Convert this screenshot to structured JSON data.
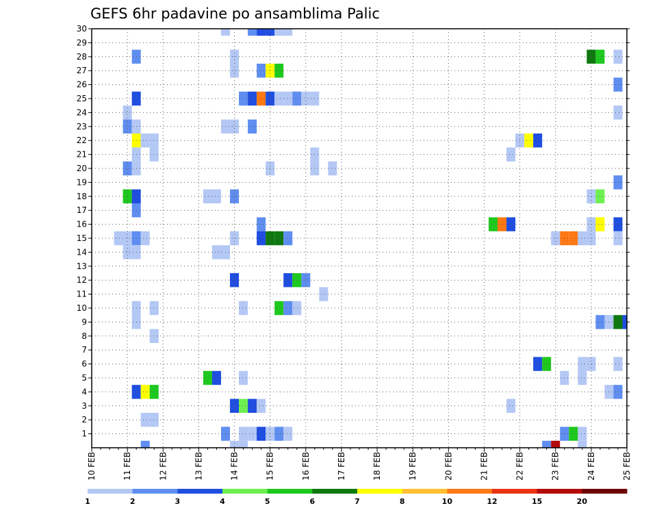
{
  "chart_data": {
    "type": "heatmap",
    "title": "GEFS 6hr padavine po ansamblima Palic",
    "xlabel": "",
    "ylabel": "",
    "x_ticks": [
      "10 FEB",
      "11 FEB",
      "12 FEB",
      "13 FEB",
      "14 FEB",
      "15 FEB",
      "16 FEB",
      "17 FEB",
      "18 FEB",
      "19 FEB",
      "20 FEB",
      "21 FEB",
      "22 FEB",
      "23 FEB",
      "24 FEB",
      "25 FEB"
    ],
    "y_ticks": [
      1,
      2,
      3,
      4,
      5,
      6,
      7,
      8,
      9,
      10,
      11,
      12,
      13,
      14,
      15,
      16,
      17,
      18,
      19,
      20,
      21,
      22,
      23,
      24,
      25,
      26,
      27,
      28,
      29,
      30
    ],
    "x_range": [
      0,
      60
    ],
    "y_range": [
      0,
      30
    ],
    "grid": true,
    "levels": [
      1,
      2,
      3,
      4,
      5,
      6,
      7,
      8,
      10,
      12,
      15,
      20
    ],
    "level_colors": [
      "#b4c8f5",
      "#5f8ef0",
      "#1f4ee0",
      "#6ef050",
      "#1ec81e",
      "#0f780f",
      "#ffff00",
      "#ffc032",
      "#ff7814",
      "#eb3214",
      "#b40a0a",
      "#6e0505"
    ],
    "cells": [
      [
        15,
        30,
        1
      ],
      [
        18,
        30,
        2
      ],
      [
        19,
        30,
        3
      ],
      [
        20,
        30,
        3
      ],
      [
        21,
        30,
        1
      ],
      [
        22,
        30,
        1
      ],
      [
        5,
        28,
        2
      ],
      [
        16,
        28,
        1
      ],
      [
        56,
        28,
        6
      ],
      [
        57,
        28,
        5
      ],
      [
        59,
        28,
        1
      ],
      [
        16,
        27,
        1
      ],
      [
        19,
        27,
        2
      ],
      [
        20,
        27,
        7
      ],
      [
        21,
        27,
        5
      ],
      [
        59,
        26,
        2
      ],
      [
        5,
        25,
        3
      ],
      [
        17,
        25,
        2
      ],
      [
        18,
        25,
        3
      ],
      [
        19,
        25,
        9
      ],
      [
        20,
        25,
        3
      ],
      [
        21,
        25,
        1
      ],
      [
        22,
        25,
        1
      ],
      [
        23,
        25,
        2
      ],
      [
        24,
        25,
        1
      ],
      [
        25,
        25,
        1
      ],
      [
        4,
        24,
        1
      ],
      [
        59,
        24,
        1
      ],
      [
        4,
        23,
        2
      ],
      [
        5,
        23,
        1
      ],
      [
        15,
        23,
        1
      ],
      [
        16,
        23,
        1
      ],
      [
        18,
        23,
        2
      ],
      [
        5,
        22,
        7
      ],
      [
        6,
        22,
        1
      ],
      [
        7,
        22,
        1
      ],
      [
        48,
        22,
        1
      ],
      [
        49,
        22,
        7
      ],
      [
        50,
        22,
        3
      ],
      [
        5,
        21,
        1
      ],
      [
        7,
        21,
        1
      ],
      [
        25,
        21,
        1
      ],
      [
        47,
        21,
        1
      ],
      [
        4,
        20,
        2
      ],
      [
        5,
        20,
        1
      ],
      [
        20,
        20,
        1
      ],
      [
        25,
        20,
        1
      ],
      [
        27,
        20,
        1
      ],
      [
        59,
        19,
        2
      ],
      [
        4,
        18,
        5
      ],
      [
        5,
        18,
        3
      ],
      [
        13,
        18,
        1
      ],
      [
        14,
        18,
        1
      ],
      [
        16,
        18,
        2
      ],
      [
        56,
        18,
        1
      ],
      [
        57,
        18,
        4
      ],
      [
        5,
        17,
        2
      ],
      [
        19,
        16,
        2
      ],
      [
        45,
        16,
        5
      ],
      [
        46,
        16,
        9
      ],
      [
        47,
        16,
        3
      ],
      [
        56,
        16,
        1
      ],
      [
        57,
        16,
        7
      ],
      [
        59,
        16,
        3
      ],
      [
        3,
        15,
        1
      ],
      [
        4,
        15,
        1
      ],
      [
        5,
        15,
        2
      ],
      [
        6,
        15,
        1
      ],
      [
        16,
        15,
        1
      ],
      [
        19,
        15,
        3
      ],
      [
        20,
        15,
        6
      ],
      [
        21,
        15,
        6
      ],
      [
        22,
        15,
        2
      ],
      [
        52,
        15,
        1
      ],
      [
        53,
        15,
        9
      ],
      [
        54,
        15,
        9
      ],
      [
        55,
        15,
        1
      ],
      [
        56,
        15,
        1
      ],
      [
        59,
        15,
        1
      ],
      [
        4,
        14,
        1
      ],
      [
        5,
        14,
        1
      ],
      [
        14,
        14,
        1
      ],
      [
        15,
        14,
        1
      ],
      [
        16,
        12,
        3
      ],
      [
        22,
        12,
        3
      ],
      [
        23,
        12,
        5
      ],
      [
        24,
        12,
        2
      ],
      [
        26,
        11,
        1
      ],
      [
        5,
        10,
        1
      ],
      [
        7,
        10,
        1
      ],
      [
        17,
        10,
        1
      ],
      [
        21,
        10,
        5
      ],
      [
        22,
        10,
        2
      ],
      [
        23,
        10,
        1
      ],
      [
        5,
        9,
        1
      ],
      [
        57,
        9,
        2
      ],
      [
        58,
        9,
        1
      ],
      [
        59,
        9,
        6
      ],
      [
        60,
        9,
        3
      ],
      [
        7,
        8,
        1
      ],
      [
        50,
        6,
        3
      ],
      [
        51,
        6,
        5
      ],
      [
        55,
        6,
        1
      ],
      [
        56,
        6,
        1
      ],
      [
        59,
        6,
        1
      ],
      [
        13,
        5,
        5
      ],
      [
        14,
        5,
        3
      ],
      [
        17,
        5,
        1
      ],
      [
        53,
        5,
        1
      ],
      [
        55,
        5,
        1
      ],
      [
        5,
        4,
        3
      ],
      [
        6,
        4,
        7
      ],
      [
        7,
        4,
        5
      ],
      [
        58,
        4,
        1
      ],
      [
        59,
        4,
        2
      ],
      [
        16,
        3,
        3
      ],
      [
        17,
        3,
        4
      ],
      [
        18,
        3,
        3
      ],
      [
        19,
        3,
        1
      ],
      [
        47,
        3,
        1
      ],
      [
        6,
        2,
        1
      ],
      [
        7,
        2,
        1
      ],
      [
        15,
        1,
        2
      ],
      [
        17,
        1,
        1
      ],
      [
        18,
        1,
        1
      ],
      [
        19,
        1,
        3
      ],
      [
        20,
        1,
        1
      ],
      [
        21,
        1,
        2
      ],
      [
        22,
        1,
        1
      ],
      [
        53,
        1,
        2
      ],
      [
        54,
        1,
        5
      ],
      [
        55,
        1,
        1
      ],
      [
        6,
        0,
        2
      ],
      [
        16,
        0,
        1
      ],
      [
        17,
        0,
        1
      ],
      [
        51,
        0,
        2
      ],
      [
        52,
        0,
        11
      ],
      [
        55,
        0,
        1
      ]
    ]
  }
}
